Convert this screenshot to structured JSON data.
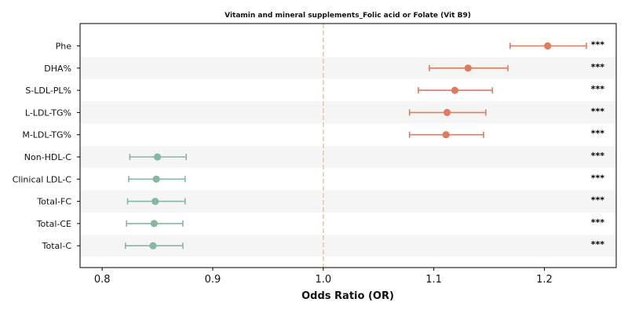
{
  "chart_data": {
    "type": "forest",
    "title": "Vitamin and mineral supplements_Folic acid or Folate (Vit B9)",
    "xlabel": "Odds Ratio (OR)",
    "ylabel": "",
    "xlim": [
      0.78,
      1.265
    ],
    "xticks": [
      0.8,
      0.9,
      1.0,
      1.1,
      1.2
    ],
    "xtick_labels": [
      "0.8",
      "0.9",
      "1.0",
      "1.1",
      "1.2"
    ],
    "reference_line": 1.0,
    "alternating_row_shading": true,
    "colors": {
      "increased": "#e07b5d",
      "decreased": "#86b7a0",
      "reference_line": "#f2c98c",
      "row_shade": "#f5f5f5"
    },
    "rows": [
      {
        "label": "Phe",
        "or": 1.203,
        "lower": 1.169,
        "upper": 1.238,
        "significance": "***"
      },
      {
        "label": "DHA%",
        "or": 1.131,
        "lower": 1.096,
        "upper": 1.167,
        "significance": "***"
      },
      {
        "label": "S-LDL-PL%",
        "or": 1.119,
        "lower": 1.086,
        "upper": 1.153,
        "significance": "***"
      },
      {
        "label": "L-LDL-TG%",
        "or": 1.112,
        "lower": 1.078,
        "upper": 1.147,
        "significance": "***"
      },
      {
        "label": "M-LDL-TG%",
        "or": 1.111,
        "lower": 1.078,
        "upper": 1.145,
        "significance": "***"
      },
      {
        "label": "Non-HDL-C",
        "or": 0.85,
        "lower": 0.825,
        "upper": 0.876,
        "significance": "***"
      },
      {
        "label": "Clinical LDL-C",
        "or": 0.849,
        "lower": 0.824,
        "upper": 0.875,
        "significance": "***"
      },
      {
        "label": "Total-FC",
        "or": 0.848,
        "lower": 0.823,
        "upper": 0.875,
        "significance": "***"
      },
      {
        "label": "Total-CE",
        "or": 0.847,
        "lower": 0.822,
        "upper": 0.873,
        "significance": "***"
      },
      {
        "label": "Total-C",
        "or": 0.846,
        "lower": 0.821,
        "upper": 0.873,
        "significance": "***"
      }
    ]
  }
}
